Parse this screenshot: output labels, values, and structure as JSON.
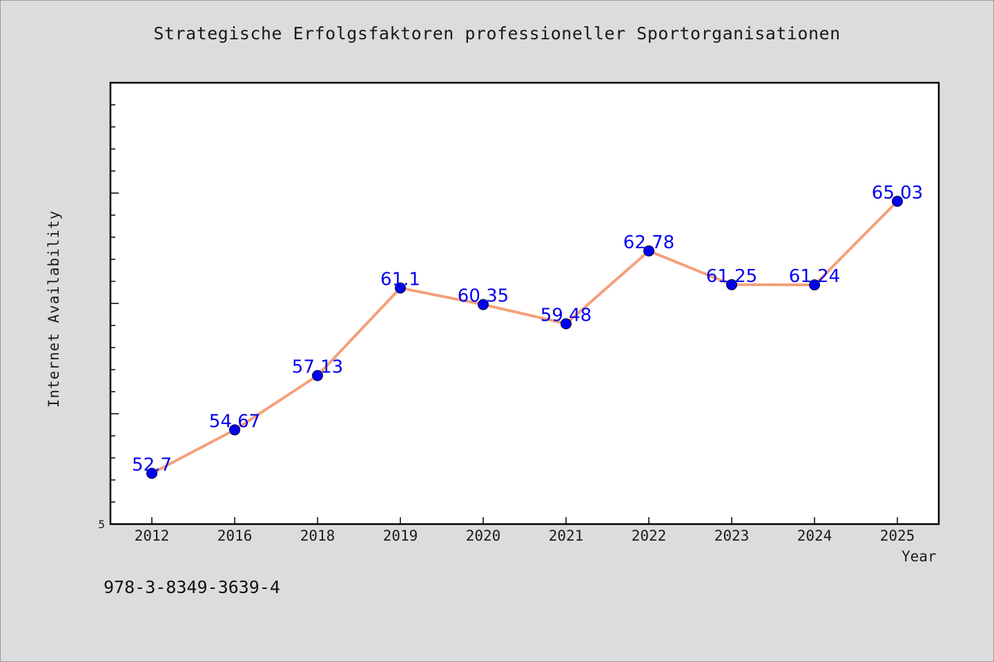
{
  "chart_data": {
    "type": "line",
    "title": "Strategische Erfolgsfaktoren professioneller Sportorganisationen",
    "xlabel": "Year",
    "ylabel": "Internet Availability",
    "categories": [
      "2012",
      "2016",
      "2018",
      "2019",
      "2020",
      "2021",
      "2022",
      "2023",
      "2024",
      "2025"
    ],
    "series": [
      {
        "values": [
          52.7,
          54.67,
          57.13,
          61.1,
          60.35,
          59.48,
          62.78,
          61.25,
          61.24,
          65.03
        ]
      }
    ],
    "data_labels": [
      "52.7",
      "54.67",
      "57.13",
      "61.1",
      "60.35",
      "59.48",
      "62.78",
      "61.25",
      "61.24",
      "65.03"
    ],
    "y_tick_labels": [
      "5"
    ],
    "ylim": [
      50.4,
      70.4
    ],
    "grid": false,
    "legend": "none",
    "colors": {
      "line": "#f5a07a",
      "marker": "#0000ee",
      "label": "#0000ee",
      "background": "#dcdcdc",
      "plot_bg": "#ffffff"
    }
  },
  "footer": {
    "isbn": "978-3-8349-3639-4"
  }
}
